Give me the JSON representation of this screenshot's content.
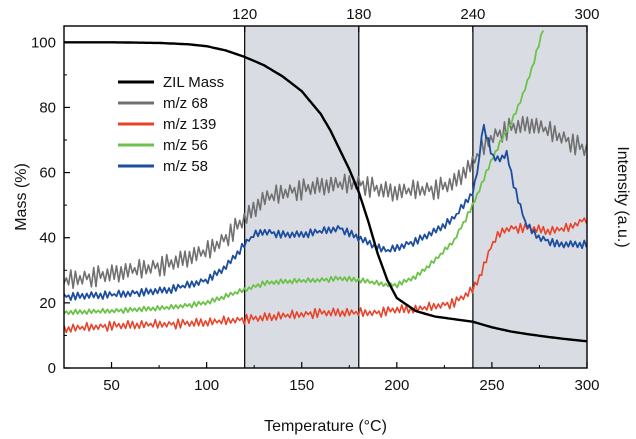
{
  "chart_data": {
    "type": "line",
    "xlabel": "Temperature (°C)",
    "ylabel": "Mass (%)",
    "y2label": "Intensity (a.u.)",
    "xlim": [
      25,
      300
    ],
    "ylim": [
      0,
      105
    ],
    "x_ticks": [
      50,
      100,
      150,
      200,
      250,
      300
    ],
    "y_ticks": [
      0,
      20,
      40,
      60,
      80,
      100
    ],
    "x_minor_ticks": [
      75,
      125,
      175,
      225,
      275
    ],
    "y_minor_ticks": [
      10,
      30,
      50,
      70,
      90
    ],
    "top_ticks": [
      {
        "x": 120,
        "label": "120"
      },
      {
        "x": 180,
        "label": "180"
      },
      {
        "x": 240,
        "label": "240"
      },
      {
        "x": 300,
        "label": "300"
      }
    ],
    "shaded_regions": [
      {
        "from": 120,
        "to": 180,
        "color": "#d9dde3"
      },
      {
        "from": 240,
        "to": 300,
        "color": "#d9dde3"
      }
    ],
    "vertical_lines": [
      120,
      180,
      240
    ],
    "grid": false,
    "legend_position": "top-left",
    "noise": [
      0.2,
      -0.7,
      0.9,
      -0.3,
      0.6,
      -1.0,
      0.4,
      -0.5,
      1.0,
      -0.8,
      0.3,
      -0.2,
      0.8,
      -0.9,
      0.5,
      -0.4,
      0.7,
      -0.6,
      0.1,
      -1.0,
      0.9,
      -0.1,
      0.6,
      -0.7,
      0.4,
      -0.3,
      1.0,
      -0.5,
      0.2,
      -0.8
    ],
    "series": [
      {
        "name": "ZIL Mass",
        "color": "#000000",
        "width": 2.4,
        "noise_amp": 0,
        "points": [
          [
            25,
            100
          ],
          [
            50,
            100
          ],
          [
            75,
            99.8
          ],
          [
            90,
            99.4
          ],
          [
            100,
            98.8
          ],
          [
            110,
            97.5
          ],
          [
            120,
            95.5
          ],
          [
            130,
            93
          ],
          [
            140,
            89.5
          ],
          [
            150,
            85
          ],
          [
            160,
            78
          ],
          [
            165,
            73
          ],
          [
            170,
            67
          ],
          [
            175,
            61
          ],
          [
            180,
            54
          ],
          [
            185,
            45
          ],
          [
            190,
            35
          ],
          [
            195,
            27
          ],
          [
            200,
            21.5
          ],
          [
            210,
            17.5
          ],
          [
            220,
            15.8
          ],
          [
            230,
            15
          ],
          [
            240,
            14.2
          ],
          [
            250,
            12.5
          ],
          [
            260,
            11.2
          ],
          [
            270,
            10.3
          ],
          [
            280,
            9.5
          ],
          [
            290,
            8.8
          ],
          [
            300,
            8.2
          ]
        ]
      },
      {
        "name": "m/z 68",
        "color": "#707070",
        "width": 1.6,
        "noise_amp": 3.2,
        "points": [
          [
            25,
            27
          ],
          [
            50,
            29
          ],
          [
            80,
            32
          ],
          [
            100,
            36
          ],
          [
            110,
            40
          ],
          [
            120,
            46
          ],
          [
            130,
            52
          ],
          [
            140,
            54
          ],
          [
            160,
            56
          ],
          [
            180,
            57
          ],
          [
            190,
            55
          ],
          [
            200,
            54
          ],
          [
            210,
            55
          ],
          [
            220,
            55
          ],
          [
            230,
            57
          ],
          [
            240,
            63
          ],
          [
            245,
            68
          ],
          [
            250,
            71
          ],
          [
            260,
            74
          ],
          [
            270,
            75
          ],
          [
            280,
            73
          ],
          [
            290,
            70
          ],
          [
            300,
            67
          ]
        ]
      },
      {
        "name": "m/z 139",
        "color": "#e8432a",
        "width": 1.6,
        "noise_amp": 1.6,
        "points": [
          [
            25,
            12
          ],
          [
            50,
            13
          ],
          [
            80,
            13.5
          ],
          [
            100,
            14
          ],
          [
            120,
            15
          ],
          [
            140,
            16
          ],
          [
            160,
            17
          ],
          [
            180,
            17
          ],
          [
            190,
            17
          ],
          [
            200,
            18
          ],
          [
            210,
            18
          ],
          [
            220,
            19
          ],
          [
            230,
            20
          ],
          [
            240,
            24
          ],
          [
            245,
            30
          ],
          [
            250,
            38
          ],
          [
            255,
            42
          ],
          [
            260,
            43
          ],
          [
            270,
            43
          ],
          [
            280,
            42
          ],
          [
            290,
            43
          ],
          [
            300,
            46
          ]
        ]
      },
      {
        "name": "m/z 56",
        "color": "#6cc24a",
        "width": 1.8,
        "noise_amp": 0.8,
        "points": [
          [
            25,
            17
          ],
          [
            50,
            17.5
          ],
          [
            80,
            18.5
          ],
          [
            100,
            20
          ],
          [
            110,
            22
          ],
          [
            120,
            24
          ],
          [
            130,
            26
          ],
          [
            140,
            26.5
          ],
          [
            160,
            27
          ],
          [
            170,
            27.5
          ],
          [
            180,
            27
          ],
          [
            190,
            26
          ],
          [
            195,
            25.5
          ],
          [
            200,
            25.5
          ],
          [
            210,
            28
          ],
          [
            220,
            33
          ],
          [
            230,
            39
          ],
          [
            240,
            50
          ],
          [
            250,
            64
          ],
          [
            255,
            70
          ],
          [
            260,
            75
          ],
          [
            265,
            82
          ],
          [
            270,
            90
          ],
          [
            275,
            100
          ],
          [
            278,
            106
          ]
        ]
      },
      {
        "name": "m/z 58",
        "color": "#1d4d9e",
        "width": 1.8,
        "noise_amp": 1.3,
        "points": [
          [
            25,
            22
          ],
          [
            50,
            22.5
          ],
          [
            80,
            24
          ],
          [
            100,
            27
          ],
          [
            110,
            31
          ],
          [
            120,
            38
          ],
          [
            125,
            41
          ],
          [
            130,
            42
          ],
          [
            140,
            41
          ],
          [
            150,
            41
          ],
          [
            160,
            42
          ],
          [
            170,
            43
          ],
          [
            180,
            40
          ],
          [
            190,
            37
          ],
          [
            195,
            36
          ],
          [
            200,
            37
          ],
          [
            210,
            39
          ],
          [
            220,
            42
          ],
          [
            230,
            46
          ],
          [
            240,
            54
          ],
          [
            243,
            62
          ],
          [
            245,
            75
          ],
          [
            248,
            70
          ],
          [
            250,
            65
          ],
          [
            255,
            64
          ],
          [
            258,
            66
          ],
          [
            262,
            55
          ],
          [
            268,
            44
          ],
          [
            275,
            40
          ],
          [
            285,
            38
          ],
          [
            300,
            38
          ]
        ]
      }
    ]
  }
}
